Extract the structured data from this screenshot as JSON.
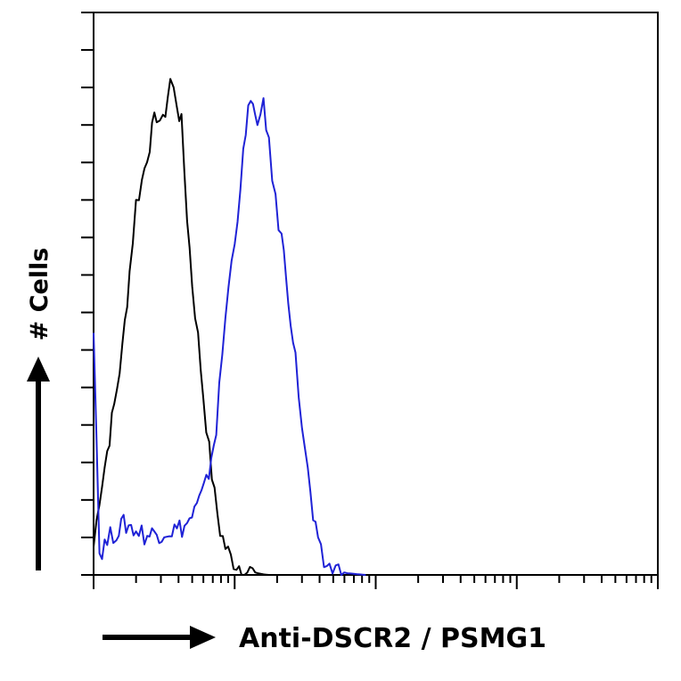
{
  "chart_data": {
    "type": "line",
    "title": "",
    "xlabel": "Anti-DSCR2 / PSMG1",
    "ylabel": "# Cells",
    "x_scale": "log",
    "xlim": [
      1,
      10000
    ],
    "ylim": [
      0,
      100
    ],
    "grid": false,
    "colors": {
      "control": "#000000",
      "stained": "#1f22d6",
      "axis": "#000000"
    },
    "series": [
      {
        "color": "#000000",
        "x": [
          1.0,
          1.1,
          1.25,
          1.4,
          1.6,
          1.8,
          2.0,
          2.2,
          2.5,
          2.8,
          3.1,
          3.5,
          3.9,
          4.2,
          4.6,
          5.0,
          5.5,
          6.0,
          6.6,
          7.2,
          7.9,
          8.6,
          9.4,
          10.3,
          11.2,
          12.3,
          13.4,
          14.6,
          16.0,
          17.5
        ],
        "y": [
          5,
          14,
          22,
          30,
          40,
          54,
          66,
          70,
          77,
          82,
          80,
          88,
          84,
          80,
          64,
          52,
          42,
          32,
          22,
          14,
          8,
          5,
          3,
          2,
          1.5,
          0.8,
          0.6,
          0.3,
          0.1,
          0
        ]
      },
      {
        "color": "#1f22d6",
        "x": [
          1.0,
          1.1,
          1.25,
          1.45,
          1.7,
          2.0,
          2.4,
          2.8,
          3.3,
          3.9,
          4.6,
          5.4,
          6.3,
          7.4,
          8.6,
          10.0,
          11.5,
          13.0,
          14.5,
          16.0,
          17.5,
          19.5,
          21.5,
          24.0,
          27.0,
          30.0,
          33.0,
          36.0,
          39.0,
          43.0,
          47.0,
          52.0,
          57.0,
          63.0,
          70.0,
          77.0,
          85.0
        ],
        "y": [
          45,
          4,
          6,
          8,
          9,
          8,
          7,
          7.5,
          8,
          8,
          9,
          12,
          16,
          26,
          46,
          60,
          74,
          86,
          78,
          85,
          76,
          66,
          60,
          50,
          38,
          27,
          18,
          10,
          5,
          2,
          1.5,
          1,
          0.6,
          0.3,
          0.2,
          0.1,
          0
        ]
      }
    ]
  }
}
